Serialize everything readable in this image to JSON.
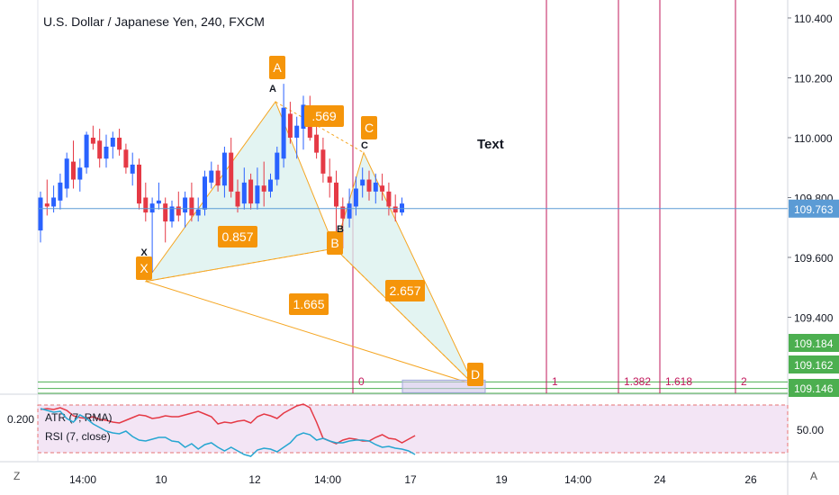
{
  "title": "U.S. Dollar / Japanese Yen, 240, FXCM",
  "buttons": {
    "left": "Z",
    "right": "A"
  },
  "colors": {
    "up": "#2962ff",
    "down": "#e53945",
    "pattern_fill": "#d9f0ee",
    "pattern_line": "#f5a623",
    "label_bg": "#f5950a",
    "time_line": "#c2185b",
    "green_line": "#4caf50",
    "price_line": "#5b9bd5",
    "rsi_bg": "#f3e5f5",
    "atr": "#e53945",
    "rsi": "#26a6d1"
  },
  "chart_data": [
    {
      "type": "candlestick",
      "title": "U.S. Dollar / Japanese Yen, 240, FXCM",
      "ylim": [
        109.146,
        110.46
      ],
      "y_ticks": [
        110.4,
        110.2,
        110.0,
        109.8,
        109.6,
        109.4
      ],
      "y_tick_labels": [
        "110.400",
        "110.200",
        "110.000",
        "109.800",
        "109.600",
        "109.400"
      ],
      "x_tick_labels": [
        "14:00",
        "10",
        "12",
        "14:00",
        "17",
        "19",
        "14:00",
        "24",
        "26"
      ],
      "last_price": "109.763",
      "last_price_value": 109.763,
      "ohlc": [
        [
          109.69,
          109.82,
          109.65,
          109.8
        ],
        [
          109.78,
          109.86,
          109.74,
          109.77
        ],
        [
          109.77,
          109.84,
          109.75,
          109.8
        ],
        [
          109.79,
          109.88,
          109.76,
          109.85
        ],
        [
          109.83,
          109.95,
          109.8,
          109.93
        ],
        [
          109.92,
          109.99,
          109.83,
          109.86
        ],
        [
          109.86,
          109.93,
          109.82,
          109.9
        ],
        [
          109.9,
          110.02,
          109.88,
          110.01
        ],
        [
          110.0,
          110.04,
          109.96,
          109.98
        ],
        [
          109.99,
          110.03,
          109.9,
          109.93
        ],
        [
          109.93,
          110.01,
          109.9,
          109.97
        ],
        [
          109.97,
          110.02,
          109.93,
          110.0
        ],
        [
          110.0,
          110.03,
          109.94,
          109.96
        ],
        [
          109.96,
          109.98,
          109.88,
          109.9
        ],
        [
          109.88,
          109.95,
          109.84,
          109.91
        ],
        [
          109.91,
          109.93,
          109.76,
          109.78
        ],
        [
          109.8,
          109.85,
          109.72,
          109.75
        ],
        [
          109.75,
          109.8,
          109.55,
          109.78
        ],
        [
          109.78,
          109.85,
          109.76,
          109.79
        ],
        [
          109.78,
          109.8,
          109.65,
          109.72
        ],
        [
          109.72,
          109.79,
          109.7,
          109.77
        ],
        [
          109.77,
          109.82,
          109.72,
          109.74
        ],
        [
          109.75,
          109.82,
          109.7,
          109.8
        ],
        [
          109.8,
          109.85,
          109.72,
          109.74
        ],
        [
          109.74,
          109.8,
          109.72,
          109.76
        ],
        [
          109.76,
          109.89,
          109.74,
          109.87
        ],
        [
          109.85,
          109.92,
          109.83,
          109.89
        ],
        [
          109.89,
          109.91,
          109.82,
          109.84
        ],
        [
          109.84,
          109.97,
          109.8,
          109.95
        ],
        [
          109.95,
          110.0,
          109.8,
          109.82
        ],
        [
          109.82,
          109.86,
          109.75,
          109.77
        ],
        [
          109.78,
          109.9,
          109.76,
          109.85
        ],
        [
          109.86,
          109.88,
          109.76,
          109.78
        ],
        [
          109.78,
          109.9,
          109.76,
          109.84
        ],
        [
          109.84,
          109.92,
          109.77,
          109.82
        ],
        [
          109.82,
          109.88,
          109.8,
          109.86
        ],
        [
          109.86,
          109.97,
          109.84,
          109.95
        ],
        [
          109.93,
          110.18,
          109.9,
          110.1
        ],
        [
          110.08,
          110.12,
          109.98,
          110.0
        ],
        [
          110.0,
          110.07,
          109.93,
          110.04
        ],
        [
          110.03,
          110.14,
          109.96,
          110.11
        ],
        [
          110.1,
          110.14,
          109.99,
          110.0
        ],
        [
          110.01,
          110.04,
          109.93,
          109.95
        ],
        [
          109.96,
          110.0,
          109.85,
          109.88
        ],
        [
          109.87,
          109.93,
          109.8,
          109.85
        ],
        [
          109.85,
          109.89,
          109.66,
          109.77
        ],
        [
          109.77,
          109.8,
          109.63,
          109.73
        ],
        [
          109.73,
          109.83,
          109.7,
          109.78
        ],
        [
          109.77,
          109.87,
          109.74,
          109.83
        ],
        [
          109.84,
          109.9,
          109.8,
          109.86
        ],
        [
          109.86,
          109.89,
          109.79,
          109.82
        ],
        [
          109.82,
          109.88,
          109.78,
          109.85
        ],
        [
          109.84,
          109.88,
          109.79,
          109.82
        ],
        [
          109.82,
          109.85,
          109.74,
          109.77
        ],
        [
          109.77,
          109.81,
          109.72,
          109.75
        ],
        [
          109.75,
          109.8,
          109.74,
          109.78
        ]
      ],
      "pattern": {
        "points": [
          {
            "label": "X",
            "value": 109.52
          },
          {
            "label": "A",
            "value": 110.12
          },
          {
            "label": "B",
            "value": 109.63
          },
          {
            "label": "C",
            "value": 109.95
          },
          {
            "label": "D",
            "value": 109.176
          }
        ],
        "ratios": [
          "0.857",
          "1.665",
          "2.657",
          ".569"
        ]
      },
      "annotation_text": "Text",
      "horizontal_lines": [
        {
          "value": 109.184,
          "label": "109.184"
        },
        {
          "value": 109.162,
          "label": "109.162"
        },
        {
          "value": 109.146,
          "label": "109.146"
        }
      ],
      "fib_time_labels": [
        "0",
        "1",
        "1.382",
        "1.618",
        "2"
      ]
    },
    {
      "type": "line",
      "indicators": [
        "ATR (7, RMA)",
        "RSI (7, close)"
      ],
      "left_scale_label": "0.200",
      "right_scale_label": "50.00",
      "ylim": [
        15,
        85
      ],
      "series": [
        {
          "name": "ATR (7, RMA)",
          "values": [
            70,
            71,
            70,
            72,
            69,
            63,
            61,
            60,
            62,
            59,
            58,
            56,
            55,
            58,
            61,
            64,
            63,
            60,
            61,
            63,
            62,
            62,
            64,
            66,
            68,
            65,
            62,
            54,
            56,
            55,
            57,
            58,
            55,
            62,
            65,
            63,
            60,
            66,
            70,
            74,
            76,
            72,
            56,
            38,
            35,
            32,
            36,
            38,
            37,
            35,
            35,
            39,
            42,
            38,
            37,
            33,
            37,
            41
          ]
        },
        {
          "name": "RSI (7, close)",
          "values": [
            71,
            69,
            67,
            68,
            60,
            56,
            64,
            60,
            54,
            50,
            46,
            44,
            43,
            46,
            40,
            36,
            35,
            37,
            39,
            39,
            35,
            34,
            28,
            32,
            26,
            31,
            33,
            28,
            24,
            28,
            24,
            20,
            18,
            25,
            27,
            26,
            23,
            28,
            33,
            41,
            44,
            42,
            36,
            38,
            35,
            33,
            33,
            35,
            36,
            36,
            35,
            31,
            28,
            29,
            27,
            26,
            24,
            20
          ]
        }
      ]
    }
  ]
}
